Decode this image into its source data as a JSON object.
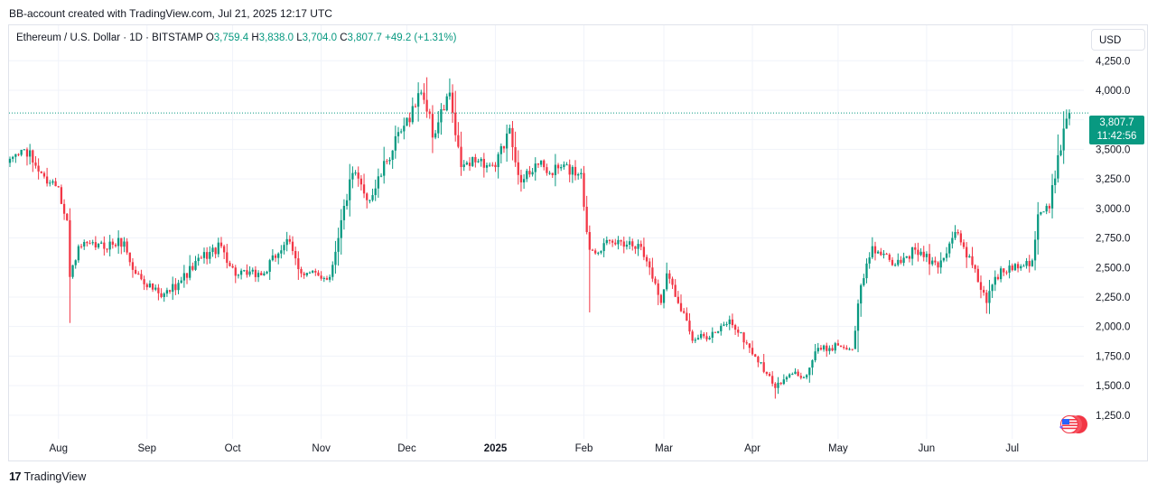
{
  "header": {
    "credit": "BB-account created with TradingView.com, Jul 21, 2025 12:17 UTC"
  },
  "legend": {
    "symbol": "Ethereum / U.S. Dollar · 1D · BITSTAMP",
    "o_label": "O",
    "o_value": "3,759.4",
    "h_label": "H",
    "h_value": "3,838.0",
    "l_label": "L",
    "l_value": "3,704.0",
    "c_label": "C",
    "c_value": "3,807.7",
    "change": "+49.2 (+1.31%)"
  },
  "currency_button": "USD",
  "last_price": {
    "price": "3,807.7",
    "countdown": "11:42:56",
    "value": 3807.7
  },
  "brand": {
    "name": "TradingView",
    "logo": "tradingview-logo-icon"
  },
  "colors": {
    "up": "#089981",
    "down": "#f23645",
    "grid": "#f0f3fa",
    "text": "#131722"
  },
  "chart_data": {
    "type": "candlestick",
    "y_ticks": [
      "1,250.0",
      "1,500.0",
      "1,750.0",
      "2,000.0",
      "2,250.0",
      "2,500.0",
      "2,750.0",
      "3,000.0",
      "3,250.0",
      "3,500.0",
      "3,750.0",
      "4,000.0",
      "4,250.0"
    ],
    "y_tick_values": [
      1250,
      1500,
      1750,
      2000,
      2250,
      2500,
      2750,
      3000,
      3250,
      3500,
      3750,
      4000,
      4250
    ],
    "ylim": [
      1050,
      4550
    ],
    "x_ticks": [
      {
        "label": "Aug",
        "date": "2024-08-01"
      },
      {
        "label": "Sep",
        "date": "2024-09-01"
      },
      {
        "label": "Oct",
        "date": "2024-10-01"
      },
      {
        "label": "Nov",
        "date": "2024-11-01"
      },
      {
        "label": "Dec",
        "date": "2024-12-01"
      },
      {
        "label": "2025",
        "date": "2025-01-01",
        "bold": true
      },
      {
        "label": "Feb",
        "date": "2025-02-01"
      },
      {
        "label": "Mar",
        "date": "2025-03-01"
      },
      {
        "label": "Apr",
        "date": "2025-04-01"
      },
      {
        "label": "May",
        "date": "2025-05-01"
      },
      {
        "label": "Jun",
        "date": "2025-06-01"
      },
      {
        "label": "Jul",
        "date": "2025-07-01"
      }
    ],
    "anchors": [
      [
        "2024-07-15",
        3420
      ],
      [
        "2024-07-20",
        3500
      ],
      [
        "2024-07-27",
        3270
      ],
      [
        "2024-08-01",
        3180
      ],
      [
        "2024-08-04",
        2900
      ],
      [
        "2024-08-05",
        2420
      ],
      [
        "2024-08-08",
        2680
      ],
      [
        "2024-08-14",
        2670
      ],
      [
        "2024-08-24",
        2720
      ],
      [
        "2024-08-27",
        2480
      ],
      [
        "2024-09-06",
        2250
      ],
      [
        "2024-09-12",
        2370
      ],
      [
        "2024-09-20",
        2580
      ],
      [
        "2024-09-27",
        2680
      ],
      [
        "2024-10-02",
        2430
      ],
      [
        "2024-10-12",
        2450
      ],
      [
        "2024-10-20",
        2740
      ],
      [
        "2024-10-25",
        2450
      ],
      [
        "2024-11-04",
        2420
      ],
      [
        "2024-11-08",
        2900
      ],
      [
        "2024-11-12",
        3300
      ],
      [
        "2024-11-18",
        3070
      ],
      [
        "2024-11-24",
        3400
      ],
      [
        "2024-11-30",
        3700
      ],
      [
        "2024-12-06",
        3980
      ],
      [
        "2024-12-09",
        3800
      ],
      [
        "2024-12-10",
        3600
      ],
      [
        "2024-12-16",
        3980
      ],
      [
        "2024-12-18",
        3620
      ],
      [
        "2024-12-20",
        3350
      ],
      [
        "2024-12-26",
        3400
      ],
      [
        "2025-01-01",
        3350
      ],
      [
        "2025-01-06",
        3680
      ],
      [
        "2025-01-10",
        3220
      ],
      [
        "2025-01-15",
        3380
      ],
      [
        "2025-01-20",
        3300
      ],
      [
        "2025-01-24",
        3350
      ],
      [
        "2025-01-31",
        3300
      ],
      [
        "2025-02-02",
        2800
      ],
      [
        "2025-02-03",
        2650
      ],
      [
        "2025-02-14",
        2720
      ],
      [
        "2025-02-20",
        2700
      ],
      [
        "2025-02-24",
        2500
      ],
      [
        "2025-02-28",
        2200
      ],
      [
        "2025-03-02",
        2450
      ],
      [
        "2025-03-09",
        2050
      ],
      [
        "2025-03-11",
        1880
      ],
      [
        "2025-03-20",
        1960
      ],
      [
        "2025-03-24",
        2060
      ],
      [
        "2025-03-31",
        1820
      ],
      [
        "2025-04-06",
        1600
      ],
      [
        "2025-04-09",
        1480
      ],
      [
        "2025-04-15",
        1600
      ],
      [
        "2025-04-20",
        1590
      ],
      [
        "2025-04-23",
        1790
      ],
      [
        "2025-05-01",
        1840
      ],
      [
        "2025-05-06",
        1810
      ],
      [
        "2025-05-09",
        2350
      ],
      [
        "2025-05-13",
        2680
      ],
      [
        "2025-05-20",
        2520
      ],
      [
        "2025-05-28",
        2650
      ],
      [
        "2025-06-05",
        2500
      ],
      [
        "2025-06-11",
        2800
      ],
      [
        "2025-06-17",
        2520
      ],
      [
        "2025-06-22",
        2200
      ],
      [
        "2025-06-25",
        2420
      ],
      [
        "2025-07-02",
        2530
      ],
      [
        "2025-07-08",
        2560
      ],
      [
        "2025-07-10",
        2950
      ],
      [
        "2025-07-14",
        3000
      ],
      [
        "2025-07-17",
        3450
      ],
      [
        "2025-07-20",
        3759.4
      ],
      [
        "2025-07-21",
        3807.7
      ]
    ],
    "last_candle": {
      "date": "2025-07-21",
      "open": 3759.4,
      "high": 3838.0,
      "low": 3704.0,
      "close": 3807.7
    },
    "wick_extremes": [
      [
        "2024-08-05",
        2110
      ],
      [
        "2024-12-08",
        4110
      ],
      [
        "2024-12-16",
        4100
      ],
      [
        "2025-01-07",
        3740
      ],
      [
        "2025-02-03",
        2120
      ],
      [
        "2025-04-09",
        1390
      ],
      [
        "2025-06-22",
        2110
      ]
    ]
  }
}
